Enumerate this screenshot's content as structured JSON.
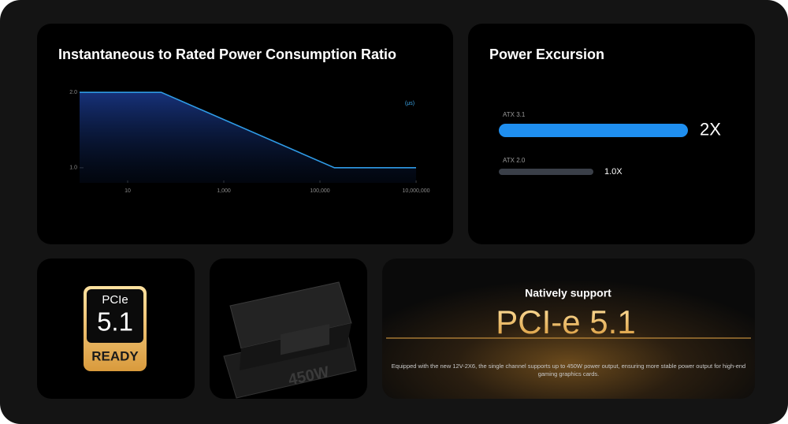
{
  "chart_data": [
    {
      "type": "line",
      "title": "Instantaneous to Rated Power Consumption Ratio",
      "x_label": "(μs)",
      "x": [
        1,
        50,
        200000,
        10000000
      ],
      "values": [
        2,
        2,
        1,
        1
      ],
      "color": "#2f9be6",
      "log_x": true,
      "xlim": [
        1,
        10000000
      ],
      "ylim": [
        0.8,
        2.2
      ],
      "xticks": [
        10,
        {
          "value": 1000,
          "label": "1,000"
        },
        {
          "value": 100000,
          "label": "100,000"
        },
        {
          "value": 10000000,
          "label": "10,000,000"
        }
      ],
      "yticks": [
        {
          "value": 2,
          "label": "2.0"
        },
        {
          "value": 1,
          "label": "1.0"
        }
      ]
    },
    {
      "type": "hbar",
      "title": "Power Excursion",
      "categories": [
        "ATX 3.1",
        "ATX 2.0"
      ],
      "values": [
        2,
        1
      ],
      "value_labels": [
        "2X",
        "1.0X"
      ],
      "colors": [
        "#1f8ff0",
        "#3a3f48"
      ],
      "xlim": [
        0,
        2
      ]
    }
  ],
  "cards": {
    "pcie_badge": {
      "top": "PCIe",
      "version": "5.1",
      "status": "READY"
    },
    "connector": {
      "label": "450W"
    },
    "promo": {
      "heading": "Natively support",
      "title": "PCI-e 5.1",
      "description": "Equipped with the new 12V-2X6, the single channel supports up to 450W power output, ensuring more stable power output for high-end gaming graphics cards."
    }
  }
}
